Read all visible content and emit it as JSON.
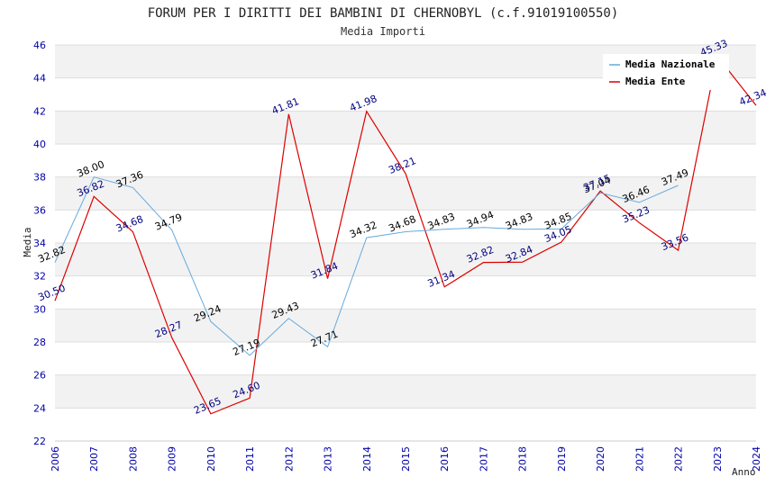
{
  "chart_data": {
    "type": "line",
    "title": "FORUM PER I DIRITTI DEI BAMBINI DI CHERNOBYL (c.f.91019100550)",
    "subtitle": "Media Importi",
    "xlabel": "Anno",
    "ylabel": "Media",
    "ylim": [
      22,
      46
    ],
    "ytick_step": 2,
    "yticks": [
      "22",
      "24",
      "26",
      "28",
      "30",
      "32",
      "34",
      "36",
      "38",
      "40",
      "42",
      "44",
      "46"
    ],
    "categories": [
      "2006",
      "2007",
      "2008",
      "2009",
      "2010",
      "2011",
      "2012",
      "2013",
      "2014",
      "2015",
      "2016",
      "2017",
      "2018",
      "2019",
      "2020",
      "2021",
      "2022",
      "2023",
      "2024"
    ],
    "legend_position": "top-right",
    "series": [
      {
        "name": "Media Nazionale",
        "color": "#66aadd",
        "values": [
          32.82,
          38.0,
          37.36,
          34.79,
          29.24,
          27.19,
          29.43,
          27.71,
          34.32,
          34.68,
          34.83,
          34.94,
          34.83,
          34.85,
          37.04,
          36.46,
          37.49,
          null,
          null
        ],
        "labels": [
          "32.82",
          "38.00",
          "37.36",
          "34.79",
          "29.24",
          "27.19",
          "29.43",
          "27.71",
          "34.32",
          "34.68",
          "34.83",
          "34.94",
          "34.83",
          "34.85",
          "37.04",
          "36.46",
          "37.49",
          null,
          null
        ]
      },
      {
        "name": "Media Ente",
        "color": "#dd0000",
        "values": [
          30.5,
          36.82,
          34.68,
          28.27,
          23.65,
          24.6,
          41.81,
          31.84,
          41.98,
          38.21,
          31.34,
          32.82,
          32.84,
          34.05,
          37.15,
          35.23,
          33.56,
          45.33,
          42.34
        ],
        "labels": [
          "30.50",
          "36.82",
          "34.68",
          "28.27",
          "23.65",
          "24.60",
          "41.81",
          "31.84",
          "41.98",
          "38.21",
          "31.34",
          "32.82",
          "32.84",
          "34.05",
          "37.15",
          "35.23",
          "33.56",
          "45.33",
          "42.34"
        ]
      }
    ]
  }
}
